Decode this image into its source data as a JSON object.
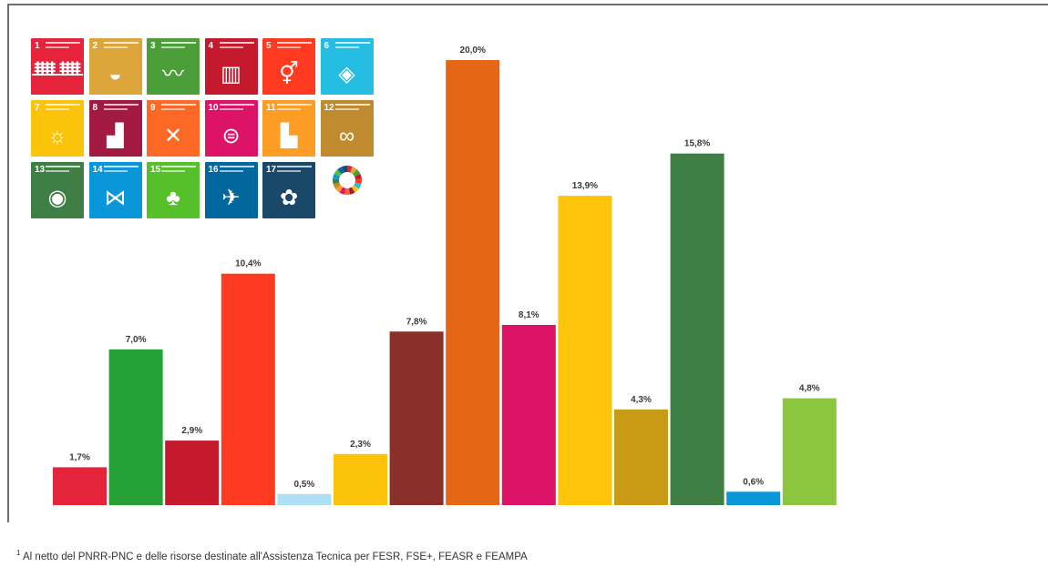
{
  "chart_data": {
    "type": "bar",
    "title": "",
    "xlabel": "",
    "ylabel": "",
    "ylim": [
      0,
      20.0
    ],
    "grid": false,
    "legend": "none",
    "categories": [
      "1",
      "2",
      "3",
      "4",
      "5",
      "6",
      "7",
      "8",
      "9",
      "10",
      "11",
      "12",
      "13",
      "14",
      "15",
      "16"
    ],
    "values": [
      1.7,
      7.0,
      2.9,
      10.4,
      0.5,
      2.3,
      7.8,
      20.0,
      8.1,
      13.9,
      4.3,
      15.8,
      0.6,
      4.8,
      0,
      0
    ],
    "value_labels": [
      "1,7%",
      "7,0%",
      "2,9%",
      "10,4%",
      "0,5%",
      "2,3%",
      "7,8%",
      "20,0%",
      "8,1%",
      "13,9%",
      "4,3%",
      "15,8%",
      "0,6%",
      "4,8%",
      "",
      ""
    ],
    "colors": [
      "#e5243b",
      "#26a135",
      "#c5192d",
      "#ff3a21",
      "#aee0f5",
      "#fcc30b",
      "#8b2f2a",
      "#e56715",
      "#dd1367",
      "#fdc40a",
      "#c99a15",
      "#3f7e44",
      "#0a97d9",
      "#8cc63f",
      "#00689d",
      "#19486a"
    ]
  },
  "sdg_icons": {
    "tiles": [
      {
        "num": "1",
        "color": "#e5243b",
        "icon": "family-icon",
        "glyph": "ᚙᚙ"
      },
      {
        "num": "2",
        "color": "#dda63a",
        "icon": "bowl-icon",
        "glyph": "◒"
      },
      {
        "num": "3",
        "color": "#4c9f38",
        "icon": "heartbeat-icon",
        "glyph": "〰"
      },
      {
        "num": "4",
        "color": "#c5192d",
        "icon": "book-icon",
        "glyph": "▥"
      },
      {
        "num": "5",
        "color": "#ff3a21",
        "icon": "gender-icon",
        "glyph": "⚥"
      },
      {
        "num": "6",
        "color": "#26bde2",
        "icon": "water-drop-icon",
        "glyph": "◈"
      },
      {
        "num": "7",
        "color": "#fcc30b",
        "icon": "sun-icon",
        "glyph": "☼"
      },
      {
        "num": "8",
        "color": "#a21942",
        "icon": "growth-chart-icon",
        "glyph": "▟"
      },
      {
        "num": "9",
        "color": "#fd6925",
        "icon": "cubes-icon",
        "glyph": "✕"
      },
      {
        "num": "10",
        "color": "#dd1367",
        "icon": "equality-icon",
        "glyph": "⊜"
      },
      {
        "num": "11",
        "color": "#fd9d24",
        "icon": "city-icon",
        "glyph": "▙"
      },
      {
        "num": "12",
        "color": "#bf8b2e",
        "icon": "infinity-icon",
        "glyph": "∞"
      },
      {
        "num": "13",
        "color": "#3f7e44",
        "icon": "eye-globe-icon",
        "glyph": "◉"
      },
      {
        "num": "14",
        "color": "#0a97d9",
        "icon": "fish-icon",
        "glyph": "⋈"
      },
      {
        "num": "15",
        "color": "#56c02b",
        "icon": "tree-bird-icon",
        "glyph": "♣"
      },
      {
        "num": "16",
        "color": "#00689d",
        "icon": "dove-icon",
        "glyph": "✈"
      },
      {
        "num": "17",
        "color": "#19486a",
        "icon": "partnership-flower-icon",
        "glyph": "✿"
      }
    ],
    "wheel_icon": "sdg-wheel-icon"
  },
  "footnote": {
    "marker": "1",
    "text": "Al netto del PNRR-PNC e delle risorse destinate all'Assistenza Tecnica per FESR, FSE+, FEASR e FEAMPA"
  }
}
